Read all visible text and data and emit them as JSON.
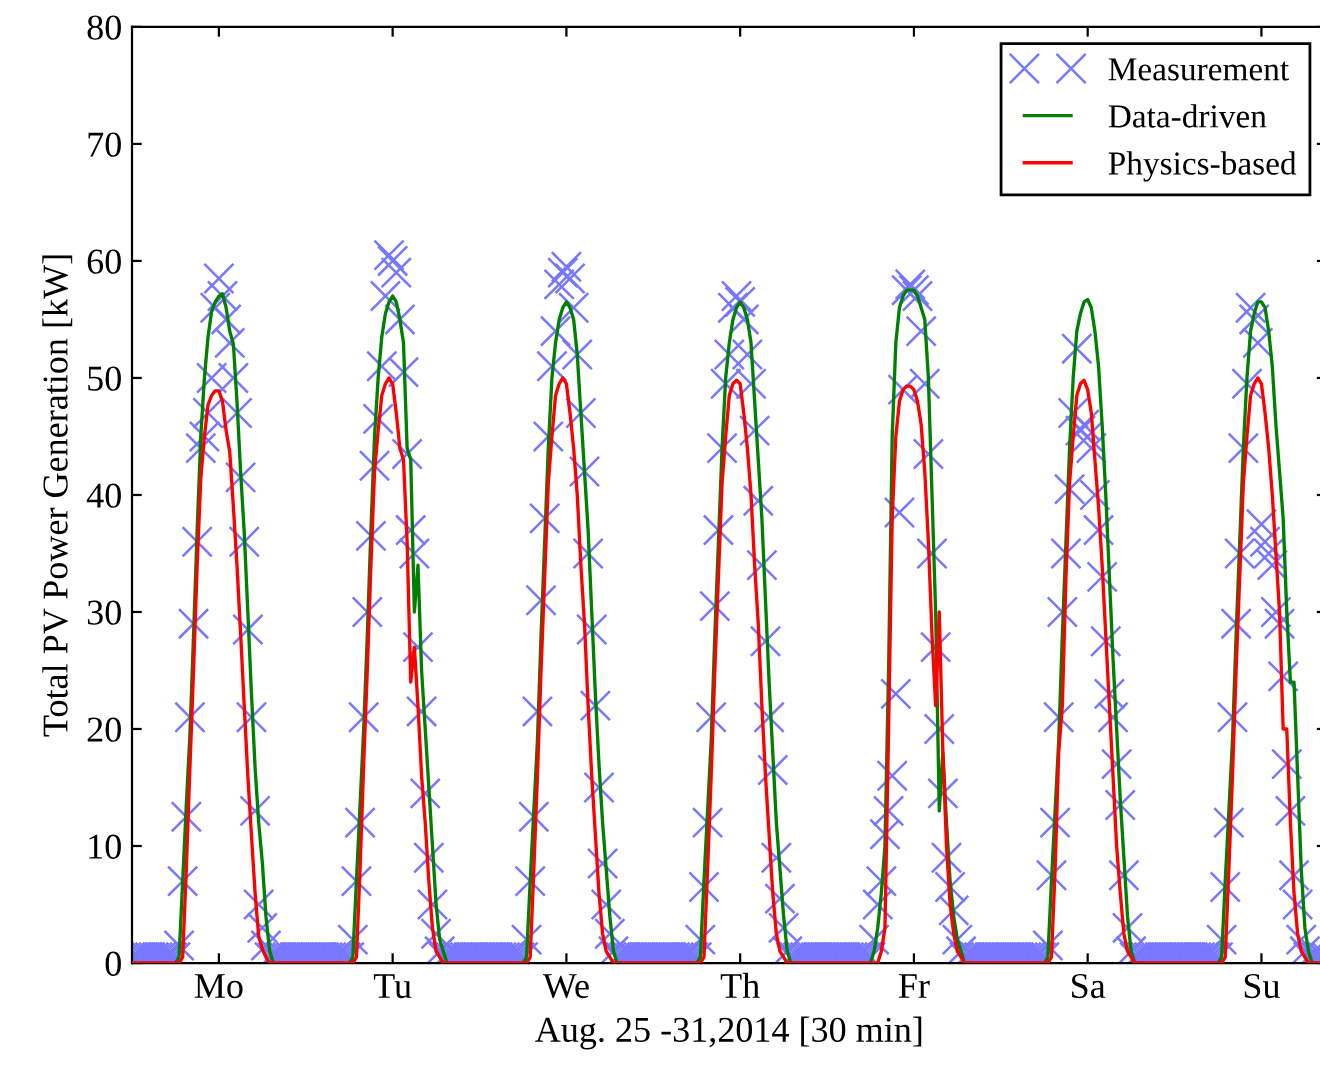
{
  "chart_data": {
    "type": "line",
    "xlabel": "Aug. 25 -31,2014 [30 min]",
    "ylabel": "Total PV Power Generation [kW]",
    "categories": [
      null,
      null,
      null,
      null,
      null,
      null,
      null,
      null,
      null,
      null,
      null,
      null,
      null,
      null,
      null,
      null,
      null,
      null,
      null,
      null,
      null,
      null,
      null,
      null,
      "Mo",
      null,
      null,
      null,
      null,
      null,
      null,
      null,
      null,
      null,
      null,
      null,
      null,
      null,
      null,
      null,
      null,
      null,
      null,
      null,
      null,
      null,
      null,
      null,
      null,
      null,
      null,
      null,
      null,
      null,
      null,
      null,
      null,
      null,
      null,
      null,
      null,
      null,
      null,
      null,
      null,
      null,
      null,
      null,
      null,
      null,
      null,
      null,
      "Tu",
      null,
      null,
      null,
      null,
      null,
      null,
      null,
      null,
      null,
      null,
      null,
      null,
      null,
      null,
      null,
      null,
      null,
      null,
      null,
      null,
      null,
      null,
      null,
      null,
      null,
      null,
      null,
      null,
      null,
      null,
      null,
      null,
      null,
      null,
      null,
      null,
      null,
      null,
      null,
      null,
      null,
      null,
      null,
      null,
      null,
      null,
      null,
      "We",
      null,
      null,
      null,
      null,
      null,
      null,
      null,
      null,
      null,
      null,
      null,
      null,
      null,
      null,
      null,
      null,
      null,
      null,
      null,
      null,
      null,
      null,
      null,
      null,
      null,
      null,
      null,
      null,
      null,
      null,
      null,
      null,
      null,
      null,
      null,
      null,
      null,
      null,
      null,
      null,
      null,
      null,
      null,
      null,
      null,
      null,
      null,
      "Th",
      null,
      null,
      null,
      null,
      null,
      null,
      null,
      null,
      null,
      null,
      null,
      null,
      null,
      null,
      null,
      null,
      null,
      null,
      null,
      null,
      null,
      null,
      null,
      null,
      null,
      null,
      null,
      null,
      null,
      null,
      null,
      null,
      null,
      null,
      null,
      null,
      null,
      null,
      null,
      null,
      null,
      null,
      null,
      null,
      null,
      null,
      null,
      "Fr",
      null,
      null,
      null,
      null,
      null,
      null,
      null,
      null,
      null,
      null,
      null,
      null,
      null,
      null,
      null,
      null,
      null,
      null,
      null,
      null,
      null,
      null,
      null,
      null,
      null,
      null,
      null,
      null,
      null,
      null,
      null,
      null,
      null,
      null,
      null,
      null,
      null,
      null,
      null,
      null,
      null,
      null,
      null,
      null,
      null,
      null,
      null,
      "Sa",
      null,
      null,
      null,
      null,
      null,
      null,
      null,
      null,
      null,
      null,
      null,
      null,
      null,
      null,
      null,
      null,
      null,
      null,
      null,
      null,
      null,
      null,
      null,
      null,
      null,
      null,
      null,
      null,
      null,
      null,
      null,
      null,
      null,
      null,
      null,
      null,
      null,
      null,
      null,
      null,
      null,
      null,
      null,
      null,
      null,
      null,
      null,
      "Su",
      null,
      null,
      null,
      null,
      null,
      null,
      null,
      null,
      null,
      null,
      null,
      null,
      null,
      null,
      null,
      null,
      null,
      null
    ],
    "ylim": [
      0,
      80
    ],
    "yticks": [
      0,
      10,
      20,
      30,
      40,
      50,
      60,
      70,
      80
    ],
    "grid": false,
    "legend": "top right",
    "series": [
      {
        "name": "Measurement",
        "type": "scatter",
        "marker": "cross",
        "color": "#7777ff",
        "values": [
          0.5,
          0.5,
          0.5,
          0.5,
          0.5,
          0.5,
          0.5,
          0.5,
          0.5,
          0.5,
          0.5,
          0.5,
          0.5,
          1.5,
          7,
          12.5,
          21,
          29,
          36,
          44,
          45,
          47,
          50,
          56,
          58.5,
          57,
          55,
          53,
          50,
          47,
          41.5,
          36,
          28.5,
          21,
          13,
          5,
          3,
          1.5,
          0.5,
          0.5,
          0.5,
          0.5,
          0.5,
          0.5,
          0.5,
          0.5,
          0.5,
          0.5,
          0.5,
          0.5,
          0.5,
          0.5,
          0.5,
          0.5,
          0.5,
          0.5,
          0.5,
          0.5,
          0.5,
          0.5,
          0.5,
          2,
          7,
          12,
          21,
          30,
          36.5,
          42.5,
          46.5,
          51,
          57,
          60.5,
          60,
          59,
          55,
          50.5,
          43.5,
          37,
          35,
          27,
          21.5,
          14.5,
          9,
          5,
          2.5,
          1,
          0.5,
          0.5,
          0.5,
          0.5,
          0.5,
          0.5,
          0.5,
          0.5,
          0.5,
          0.5,
          0.5,
          0.5,
          0.5,
          0.5,
          0.5,
          0.5,
          0.5,
          0.5,
          0.5,
          0.5,
          0.5,
          0.5,
          0.5,
          2,
          7,
          12.5,
          21.5,
          31,
          38,
          45,
          51,
          54,
          58,
          59,
          59.5,
          58.5,
          56,
          52,
          47,
          42,
          35,
          28.5,
          22,
          15,
          8.5,
          5,
          2.5,
          1,
          0.5,
          0.5,
          0.5,
          0.5,
          0.5,
          0.5,
          0.5,
          0.5,
          0.5,
          0.5,
          0.5,
          0.5,
          0.5,
          0.5,
          0.5,
          0.5,
          0.5,
          0.5,
          0.5,
          0.5,
          0.5,
          0.5,
          0.5,
          2,
          6.5,
          12,
          21,
          30.5,
          37,
          44,
          49.5,
          52,
          56,
          57,
          56.5,
          55,
          52,
          49.5,
          45.5,
          39.5,
          34,
          27.5,
          21,
          16.5,
          9,
          5.5,
          3,
          1,
          0.5,
          0.5,
          0.5,
          0.5,
          0.5,
          0.5,
          0.5,
          0.5,
          0.5,
          0.5,
          0.5,
          0.5,
          0.5,
          0.5,
          0.5,
          0.5,
          0.5,
          0.5,
          0.5,
          0.5,
          0.5,
          0.5,
          0.5,
          2,
          5,
          7,
          11,
          13,
          16,
          23,
          38.5,
          49,
          57.5,
          58,
          57.5,
          57,
          54,
          49.5,
          43.5,
          35,
          27,
          20,
          14.5,
          9,
          6.5,
          4.5,
          2,
          1,
          0.5,
          0.5,
          0.5,
          0.5,
          0.5,
          0.5,
          0.5,
          0.5,
          0.5,
          0.5,
          0.5,
          0.5,
          0.5,
          0.5,
          0.5,
          0.5,
          0.5,
          0.5,
          0.5,
          0.5,
          0.5,
          0.5,
          0.5,
          1.5,
          7.5,
          12,
          21,
          30,
          35,
          40.5,
          47,
          52.5,
          45.5,
          46,
          45,
          44,
          40,
          37,
          33,
          27.5,
          23,
          21,
          17,
          13.5,
          7.5,
          3,
          1,
          0.5,
          0.5,
          0.5,
          0.5,
          0.5,
          0.5,
          0.5,
          0.5,
          0.5,
          0.5,
          0.5,
          0.5,
          0.5,
          0.5,
          0.5,
          0.5,
          0.5,
          0.5,
          0.5,
          0.5,
          0.5,
          0.5,
          0.5,
          0.5,
          2,
          6.5,
          12,
          21,
          29,
          35,
          44,
          49.5,
          56,
          55,
          53,
          37.5,
          36,
          35,
          34,
          30,
          29,
          24.5,
          17,
          13,
          7.5,
          5,
          2,
          1,
          0.5,
          0.5,
          0.5,
          0.5,
          0.5,
          0.5
        ]
      },
      {
        "name": "Data-driven",
        "line_style": "solid",
        "color": "#008000",
        "values": [
          null,
          null,
          null,
          null,
          null,
          null,
          null,
          null,
          null,
          null,
          null,
          null,
          0,
          0.5,
          7,
          13.5,
          19.5,
          28,
          37,
          45,
          50,
          53.5,
          55.7,
          56.5,
          57,
          57.2,
          56,
          54,
          52.9,
          48,
          42,
          36.8,
          30,
          23,
          16.7,
          12,
          8.6,
          4,
          1.1,
          0,
          null,
          null,
          null,
          null,
          null,
          null,
          null,
          null,
          null,
          null,
          null,
          null,
          null,
          null,
          null,
          null,
          null,
          null,
          null,
          null,
          0,
          0.5,
          7,
          13.5,
          20,
          28,
          37,
          45,
          50,
          53.5,
          55.5,
          56.5,
          57,
          56.5,
          55,
          53,
          44,
          43,
          30,
          34,
          25,
          20,
          15,
          10,
          5,
          2,
          1,
          0,
          null,
          null,
          null,
          null,
          null,
          null,
          null,
          null,
          null,
          null,
          null,
          null,
          null,
          null,
          null,
          null,
          null,
          null,
          null,
          null,
          0,
          0.5,
          7,
          13,
          19,
          28,
          36,
          44,
          50,
          53,
          55,
          56,
          56.5,
          56,
          55,
          52,
          47,
          42,
          37,
          30,
          23,
          17,
          12,
          8,
          4,
          1,
          0,
          0,
          null,
          null,
          null,
          null,
          null,
          null,
          null,
          null,
          null,
          null,
          null,
          null,
          null,
          null,
          null,
          null,
          null,
          null,
          null,
          null,
          0,
          0.5,
          7,
          13,
          19,
          28,
          36,
          44,
          50,
          53,
          55,
          56,
          56.5,
          56,
          55,
          53,
          48,
          43,
          38,
          31,
          24,
          18,
          12,
          8,
          4,
          1,
          0,
          0,
          null,
          null,
          null,
          null,
          null,
          null,
          null,
          null,
          null,
          null,
          null,
          null,
          null,
          null,
          null,
          null,
          null,
          null,
          null,
          null,
          0,
          1,
          3,
          6,
          10,
          25,
          45,
          53,
          56,
          57,
          57.5,
          57.5,
          57.5,
          57,
          56,
          55,
          50,
          40,
          30,
          13,
          18,
          12,
          7,
          4,
          2,
          1,
          0,
          0,
          null,
          null,
          null,
          null,
          null,
          null,
          null,
          null,
          null,
          null,
          null,
          null,
          null,
          null,
          null,
          null,
          null,
          null,
          null,
          null,
          0,
          0.5,
          7,
          13,
          19,
          28,
          36,
          44,
          50,
          54,
          55.5,
          56.5,
          56.7,
          56,
          54,
          51,
          46,
          40,
          33,
          26,
          20,
          14,
          9,
          4,
          1,
          0,
          0,
          0,
          null,
          null,
          null,
          null,
          null,
          null,
          null,
          null,
          null,
          null,
          null,
          null,
          null,
          null,
          null,
          null,
          null,
          null,
          null,
          null,
          0,
          0.5,
          7,
          13,
          19,
          28,
          36,
          44,
          50,
          54,
          55.5,
          56.5,
          56.5,
          56,
          54,
          51,
          46,
          42,
          38,
          30,
          24,
          24,
          16,
          8,
          3,
          1,
          0,
          0,
          null,
          null,
          null
        ]
      },
      {
        "name": "Physics-based",
        "line_style": "solid",
        "color": "#ff0000",
        "values": [
          0,
          0,
          0,
          0,
          0,
          0,
          0,
          0,
          0,
          0,
          0,
          0,
          0,
          0,
          0.5,
          8,
          16.7,
          25,
          34,
          41.4,
          45,
          47.7,
          48.5,
          48.9,
          48.9,
          48,
          45.5,
          43.7,
          39,
          34,
          28.2,
          22,
          16,
          10.9,
          6,
          2.3,
          1.2,
          0.5,
          0,
          0,
          0,
          0,
          0,
          0,
          0,
          0,
          0,
          0,
          0,
          0,
          0,
          0,
          0,
          0,
          0,
          0,
          0,
          0,
          0,
          0,
          0,
          0,
          0.5,
          8,
          17,
          25,
          34,
          42,
          45.5,
          48.5,
          49.5,
          50,
          49.5,
          47,
          44,
          43,
          36,
          24,
          27,
          22,
          16,
          12,
          7,
          3,
          1,
          0.5,
          0,
          0,
          0,
          0,
          0,
          0,
          0,
          0,
          0,
          0,
          0,
          0,
          0,
          0,
          0,
          0,
          0,
          0,
          0,
          0,
          0,
          0,
          0,
          0,
          0.5,
          8,
          16,
          25,
          33,
          41,
          45,
          48.5,
          49.5,
          50,
          49.5,
          47,
          44,
          40,
          34,
          29,
          22,
          16,
          11,
          6,
          2.5,
          1,
          0.5,
          0,
          0,
          0,
          0,
          0,
          0,
          0,
          0,
          0,
          0,
          0,
          0,
          0,
          0,
          0,
          0,
          0,
          0,
          0,
          0,
          0,
          0,
          0,
          0,
          0,
          0.5,
          8,
          16,
          25,
          33,
          41,
          45,
          48.5,
          49.5,
          49.8,
          49.5,
          47,
          44,
          40,
          34,
          29,
          22,
          16,
          11,
          6,
          2.5,
          1,
          0.5,
          0,
          0,
          0,
          0,
          0,
          0,
          0,
          0,
          0,
          0,
          0,
          0,
          0,
          0,
          0,
          0,
          0,
          0,
          0,
          0,
          0,
          0,
          0,
          0,
          0,
          0,
          1,
          3,
          20,
          38,
          45,
          48,
          49,
          49.3,
          49.3,
          49,
          48,
          46,
          42,
          36,
          28,
          22,
          30,
          18,
          10,
          5,
          2.5,
          1,
          0.5,
          0,
          0,
          0,
          0,
          0,
          0,
          0,
          0,
          0,
          0,
          0,
          0,
          0,
          0,
          0,
          0,
          0,
          0,
          0,
          0,
          0,
          0,
          0,
          0,
          0.5,
          8,
          18,
          22,
          33,
          41,
          45,
          48.5,
          49.5,
          49.8,
          49,
          47,
          43,
          39,
          34,
          28,
          22,
          16,
          10,
          6,
          2.5,
          1,
          0.5,
          0,
          0,
          0,
          0,
          0,
          0,
          0,
          0,
          0,
          0,
          0,
          0,
          0,
          0,
          0,
          0,
          0,
          0,
          0,
          0,
          0,
          0,
          0,
          0,
          0,
          0.5,
          8,
          16,
          25,
          33,
          41,
          45,
          48.5,
          49.5,
          50,
          49.5,
          47,
          44,
          40,
          35,
          30,
          20,
          20,
          12,
          6,
          2.5,
          1,
          0.5,
          0,
          0,
          0,
          0,
          0,
          0
        ]
      }
    ]
  }
}
